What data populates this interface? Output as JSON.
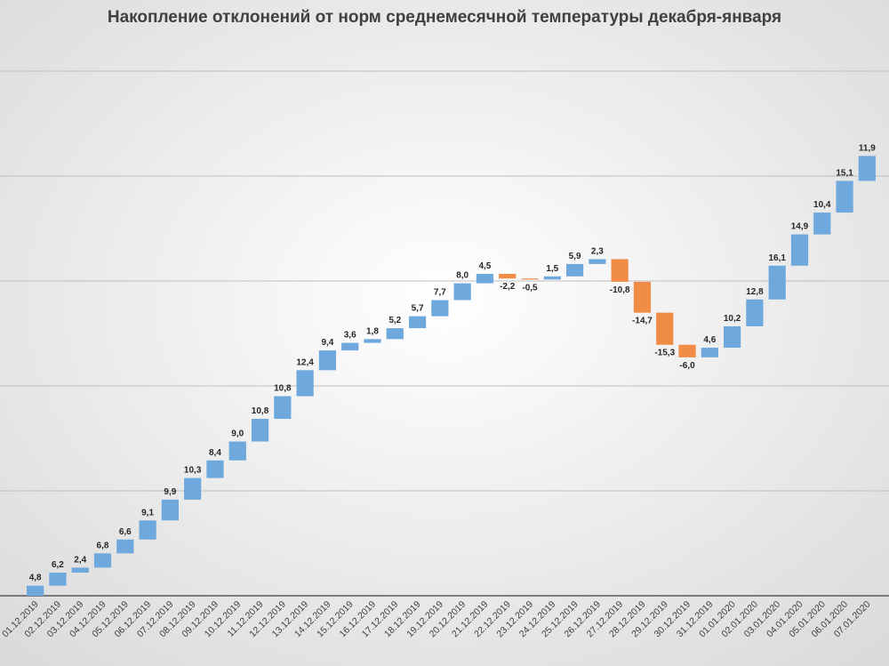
{
  "chart_data": {
    "type": "waterfall",
    "title": "Накопление отклонений от норм среднемесячной температуры декабря-января",
    "categories": [
      "01.12.2019",
      "02.12.2019",
      "03.12.2019",
      "04.12.2019",
      "05.12.2019",
      "06.12.2019",
      "07.12.2019",
      "08.12.2019",
      "09.12.2019",
      "10.12.2019",
      "11.12.2019",
      "12.12.2019",
      "13.12.2019",
      "14.12.2019",
      "15.12.2019",
      "16.12.2019",
      "17.12.2019",
      "18.12.2019",
      "19.12.2019",
      "20.12.2019",
      "21.12.2019",
      "22.12.2019",
      "23.12.2019",
      "24.12.2019",
      "25.12.2019",
      "26.12.2019",
      "27.12.2019",
      "28.12.2019",
      "29.12.2019",
      "30.12.2019",
      "31.12.2019",
      "01.01.2020",
      "02.01.2020",
      "03.01.2020",
      "04.01.2020",
      "05.01.2020",
      "06.01.2020",
      "07.01.2020"
    ],
    "values": [
      4.8,
      6.2,
      2.4,
      6.8,
      6.6,
      9.1,
      9.9,
      10.3,
      8.4,
      9.0,
      10.8,
      10.8,
      12.4,
      9.4,
      3.6,
      1.8,
      5.2,
      5.7,
      7.7,
      8.0,
      4.5,
      -2.2,
      -0.5,
      1.5,
      5.9,
      2.3,
      -10.8,
      -14.7,
      -15.3,
      -6.0,
      4.6,
      10.2,
      12.8,
      16.1,
      14.9,
      10.4,
      15.1,
      11.9
    ],
    "value_labels": [
      "4,8",
      "6,2",
      "2,4",
      "6,8",
      "6,6",
      "9,1",
      "9,9",
      "10,3",
      "8,4",
      "9,0",
      "10,8",
      "10,8",
      "12,4",
      "9,4",
      "3,6",
      "1,8",
      "5,2",
      "5,7",
      "7,7",
      "8,0",
      "4,5",
      "-2,2",
      "-0,5",
      "1,5",
      "5,9",
      "2,3",
      "-10,8",
      "-14,7",
      "-15,3",
      "-6,0",
      "4,6",
      "10,2",
      "12,8",
      "16,1",
      "14,9",
      "10,4",
      "15,1",
      "11,9"
    ],
    "increase_color": "#6fa8dc",
    "decrease_color": "#f08c45",
    "ylim": [
      0,
      250
    ],
    "yticks": [
      0,
      50,
      100,
      150,
      200,
      250
    ],
    "grid": true
  }
}
